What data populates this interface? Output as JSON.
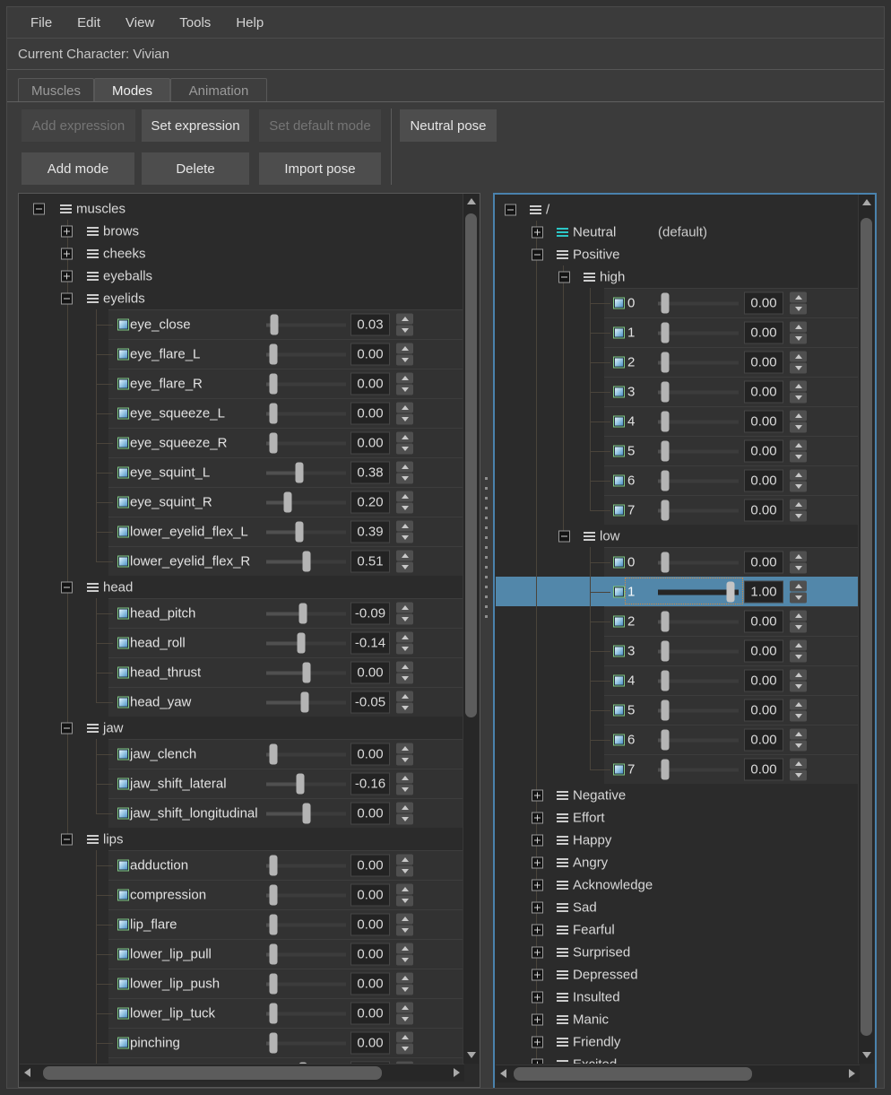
{
  "menu": {
    "items": [
      "File",
      "Edit",
      "View",
      "Tools",
      "Help"
    ]
  },
  "status_bar": {
    "label": "Current Character: Vivian"
  },
  "tabs": [
    {
      "label": "Muscles",
      "active": false
    },
    {
      "label": "Modes",
      "active": true
    },
    {
      "label": "Animation",
      "active": false
    }
  ],
  "toolbar": {
    "buttons_row1": [
      {
        "label": "Add expression",
        "enabled": false
      },
      {
        "label": "Set expression",
        "enabled": true
      },
      {
        "label": "Set default mode",
        "enabled": false
      },
      {
        "label": "Neutral pose",
        "enabled": true
      }
    ],
    "buttons_row2": [
      {
        "label": "Add mode",
        "enabled": true
      },
      {
        "label": "Delete",
        "enabled": true
      },
      {
        "label": "Import pose",
        "enabled": true
      }
    ]
  },
  "muscle_tree": {
    "root_label": "muscles",
    "groups": [
      {
        "label": "brows",
        "expanded": false
      },
      {
        "label": "cheeks",
        "expanded": false
      },
      {
        "label": "eyeballs",
        "expanded": false
      },
      {
        "label": "eyelids",
        "expanded": true,
        "muscles": [
          {
            "name": "eye_close",
            "value": "0.03",
            "slider_pos": 0.06
          },
          {
            "name": "eye_flare_L",
            "value": "0.00",
            "slider_pos": 0.04
          },
          {
            "name": "eye_flare_R",
            "value": "0.00",
            "slider_pos": 0.04
          },
          {
            "name": "eye_squeeze_L",
            "value": "0.00",
            "slider_pos": 0.04
          },
          {
            "name": "eye_squeeze_R",
            "value": "0.00",
            "slider_pos": 0.04
          },
          {
            "name": "eye_squint_L",
            "value": "0.38",
            "slider_pos": 0.4
          },
          {
            "name": "eye_squint_R",
            "value": "0.20",
            "slider_pos": 0.24
          },
          {
            "name": "lower_eyelid_flex_L",
            "value": "0.39",
            "slider_pos": 0.41
          },
          {
            "name": "lower_eyelid_flex_R",
            "value": "0.51",
            "slider_pos": 0.5
          }
        ]
      },
      {
        "label": "head",
        "expanded": true,
        "muscles": [
          {
            "name": "head_pitch",
            "value": "-0.09",
            "slider_pos": 0.46
          },
          {
            "name": "head_roll",
            "value": "-0.14",
            "slider_pos": 0.43
          },
          {
            "name": "head_thrust",
            "value": "0.00",
            "slider_pos": 0.5
          },
          {
            "name": "head_yaw",
            "value": "-0.05",
            "slider_pos": 0.48
          }
        ]
      },
      {
        "label": "jaw",
        "expanded": true,
        "muscles": [
          {
            "name": "jaw_clench",
            "value": "0.00",
            "slider_pos": 0.04
          },
          {
            "name": "jaw_shift_lateral",
            "value": "-0.16",
            "slider_pos": 0.42
          },
          {
            "name": "jaw_shift_longitudinal",
            "value": "0.00",
            "slider_pos": 0.5
          }
        ]
      },
      {
        "label": "lips",
        "expanded": true,
        "muscles": [
          {
            "name": "adduction",
            "value": "0.00",
            "slider_pos": 0.04
          },
          {
            "name": "compression",
            "value": "0.00",
            "slider_pos": 0.04
          },
          {
            "name": "lip_flare",
            "value": "0.00",
            "slider_pos": 0.04
          },
          {
            "name": "lower_lip_pull",
            "value": "0.00",
            "slider_pos": 0.04
          },
          {
            "name": "lower_lip_push",
            "value": "0.00",
            "slider_pos": 0.04
          },
          {
            "name": "lower_lip_tuck",
            "value": "0.00",
            "slider_pos": 0.04
          },
          {
            "name": "pinching",
            "value": "0.00",
            "slider_pos": 0.04
          },
          {
            "name": "",
            "value": "",
            "slider_pos": 0.45,
            "partial_visible": true
          }
        ]
      }
    ]
  },
  "mode_tree": {
    "root_label": "/",
    "modes": [
      {
        "label": "Neutral",
        "expanded": false,
        "note": "(default)",
        "accent_grip": true
      },
      {
        "label": "Positive",
        "expanded": true,
        "submodes": [
          {
            "label": "high",
            "expanded": true,
            "channels": [
              {
                "name": "0",
                "value": "0.00",
                "slider_pos": 0.04
              },
              {
                "name": "1",
                "value": "0.00",
                "slider_pos": 0.04
              },
              {
                "name": "2",
                "value": "0.00",
                "slider_pos": 0.04
              },
              {
                "name": "3",
                "value": "0.00",
                "slider_pos": 0.04
              },
              {
                "name": "4",
                "value": "0.00",
                "slider_pos": 0.04
              },
              {
                "name": "5",
                "value": "0.00",
                "slider_pos": 0.04
              },
              {
                "name": "6",
                "value": "0.00",
                "slider_pos": 0.04
              },
              {
                "name": "7",
                "value": "0.00",
                "slider_pos": 0.04
              }
            ]
          },
          {
            "label": "low",
            "expanded": true,
            "channels": [
              {
                "name": "0",
                "value": "0.00",
                "slider_pos": 0.04
              },
              {
                "name": "1",
                "value": "1.00",
                "slider_pos": 0.95,
                "selected": true
              },
              {
                "name": "2",
                "value": "0.00",
                "slider_pos": 0.04
              },
              {
                "name": "3",
                "value": "0.00",
                "slider_pos": 0.04
              },
              {
                "name": "4",
                "value": "0.00",
                "slider_pos": 0.04
              },
              {
                "name": "5",
                "value": "0.00",
                "slider_pos": 0.04
              },
              {
                "name": "6",
                "value": "0.00",
                "slider_pos": 0.04
              },
              {
                "name": "7",
                "value": "0.00",
                "slider_pos": 0.04
              }
            ]
          }
        ]
      },
      {
        "label": "Negative",
        "expanded": false
      },
      {
        "label": "Effort",
        "expanded": false
      },
      {
        "label": "Happy",
        "expanded": false
      },
      {
        "label": "Angry",
        "expanded": false
      },
      {
        "label": "Acknowledge",
        "expanded": false
      },
      {
        "label": "Sad",
        "expanded": false
      },
      {
        "label": "Fearful",
        "expanded": false
      },
      {
        "label": "Surprised",
        "expanded": false
      },
      {
        "label": "Depressed",
        "expanded": false
      },
      {
        "label": "Insulted",
        "expanded": false
      },
      {
        "label": "Manic",
        "expanded": false
      },
      {
        "label": "Friendly",
        "expanded": false
      },
      {
        "label": "Excited",
        "expanded": false
      }
    ]
  },
  "colors": {
    "selection": "#5287aa",
    "focus_border": "#4a82ad",
    "accent_cyan": "#2cc6c6",
    "checkbox_green": "#82c882"
  }
}
